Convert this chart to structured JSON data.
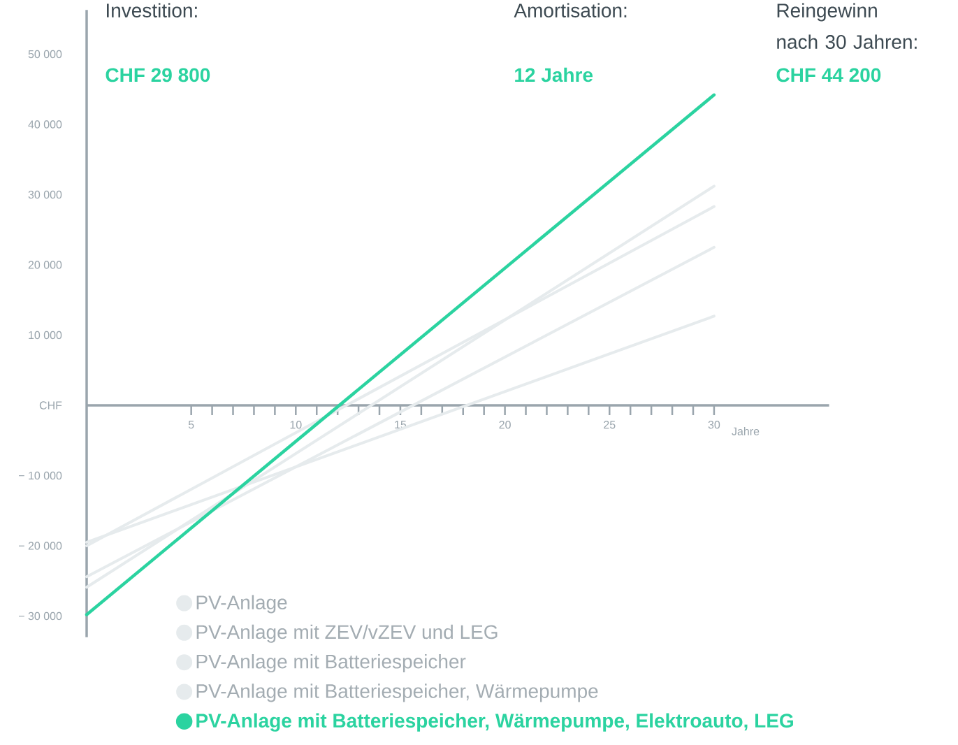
{
  "chart_data": {
    "type": "line",
    "annotations": [
      "Investition:",
      "CHF 29 800",
      "Amortisation:",
      "12 Jahre",
      "Reingewinn nach 30 Jahren:",
      "CHF 44 200"
    ],
    "xlabel": "Jahre",
    "x": [
      0,
      30
    ],
    "series": [
      {
        "name": "PV-Anlage",
        "color": "#e6ebed",
        "values": [
          -19500,
          12700
        ]
      },
      {
        "name": "PV-Anlage mit ZEV/vZEV und LEG",
        "color": "#e6ebed",
        "values": [
          -20000,
          28300
        ]
      },
      {
        "name": "PV-Anlage mit Batteriespeicher",
        "color": "#e6ebed",
        "values": [
          -24400,
          22500
        ]
      },
      {
        "name": "PV-Anlage mit Batteriespeicher, Wärmepumpe",
        "color": "#e6ebed",
        "values": [
          -25900,
          31200
        ]
      },
      {
        "name": "PV-Anlage mit Batteriespeicher, Wärmepumpe, Elektroauto, LEG",
        "color": "#2bd3a0",
        "values": [
          -29800,
          44200
        ]
      }
    ],
    "xlim": [
      0,
      35.5
    ],
    "ylim": [
      -33000,
      56300
    ],
    "xticks": [
      5,
      10,
      15,
      20,
      25,
      30
    ],
    "yticks": [
      {
        "value": -30000,
        "label": "− 30 000"
      },
      {
        "value": -20000,
        "label": "− 20 000"
      },
      {
        "value": -10000,
        "label": "− 10 000"
      },
      {
        "value": 0,
        "label": "CHF"
      },
      {
        "value": 10000,
        "label": "10 000"
      },
      {
        "value": 20000,
        "label": "20 000"
      },
      {
        "value": 30000,
        "label": "30 000"
      },
      {
        "value": 40000,
        "label": "40 000"
      },
      {
        "value": 50000,
        "label": "50 000"
      }
    ],
    "grid": false,
    "legend": "bottom left",
    "marker": "none",
    "line_style": "solid"
  }
}
